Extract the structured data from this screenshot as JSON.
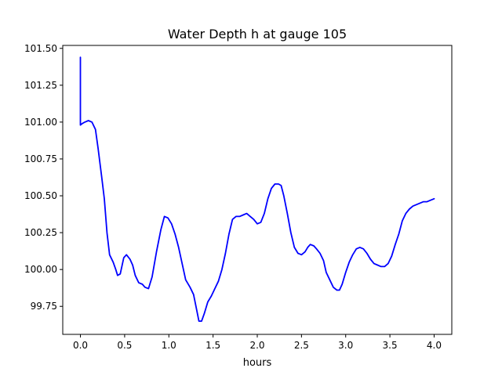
{
  "chart_data": {
    "type": "line",
    "title": "Water Depth h at gauge 105",
    "xlabel": "hours",
    "ylabel": "",
    "xlim": [
      -0.2,
      4.2
    ],
    "ylim": [
      99.56,
      101.52
    ],
    "x_ticks": [
      0.0,
      0.5,
      1.0,
      1.5,
      2.0,
      2.5,
      3.0,
      3.5,
      4.0
    ],
    "x_tick_labels": [
      "0.0",
      "0.5",
      "1.0",
      "1.5",
      "2.0",
      "2.5",
      "3.0",
      "3.5",
      "4.0"
    ],
    "y_ticks": [
      99.75,
      100.0,
      100.25,
      100.5,
      100.75,
      101.0,
      101.25,
      101.5
    ],
    "y_tick_labels": [
      "99.75",
      "100.00",
      "100.25",
      "100.50",
      "100.75",
      "101.00",
      "101.25",
      "101.50"
    ],
    "grid": false,
    "legend": "none",
    "series": [
      {
        "color": "#0000ff",
        "x": [
          0.0,
          0.0,
          0.02,
          0.05,
          0.09,
          0.13,
          0.17,
          0.2,
          0.24,
          0.27,
          0.3,
          0.33,
          0.37,
          0.4,
          0.42,
          0.45,
          0.49,
          0.52,
          0.56,
          0.59,
          0.62,
          0.66,
          0.7,
          0.73,
          0.77,
          0.81,
          0.86,
          0.91,
          0.95,
          0.99,
          1.03,
          1.07,
          1.11,
          1.15,
          1.19,
          1.24,
          1.28,
          1.31,
          1.34,
          1.37,
          1.4,
          1.44,
          1.48,
          1.52,
          1.56,
          1.6,
          1.64,
          1.68,
          1.72,
          1.76,
          1.8,
          1.84,
          1.88,
          1.92,
          1.96,
          2.0,
          2.04,
          2.08,
          2.12,
          2.16,
          2.2,
          2.24,
          2.27,
          2.3,
          2.34,
          2.38,
          2.42,
          2.46,
          2.5,
          2.54,
          2.57,
          2.6,
          2.64,
          2.67,
          2.71,
          2.75,
          2.78,
          2.82,
          2.86,
          2.9,
          2.93,
          2.96,
          3.0,
          3.04,
          3.08,
          3.12,
          3.16,
          3.2,
          3.24,
          3.28,
          3.32,
          3.36,
          3.4,
          3.44,
          3.48,
          3.52,
          3.56,
          3.6,
          3.64,
          3.68,
          3.72,
          3.76,
          3.8,
          3.84,
          3.88,
          3.92,
          3.96,
          4.0
        ],
        "y": [
          101.44,
          100.98,
          100.99,
          101.0,
          101.01,
          101.0,
          100.95,
          100.82,
          100.63,
          100.48,
          100.25,
          100.1,
          100.05,
          100.0,
          99.96,
          99.97,
          100.08,
          100.1,
          100.07,
          100.03,
          99.96,
          99.91,
          99.9,
          99.88,
          99.87,
          99.95,
          100.12,
          100.27,
          100.36,
          100.35,
          100.31,
          100.24,
          100.15,
          100.04,
          99.93,
          99.88,
          99.83,
          99.74,
          99.65,
          99.65,
          99.7,
          99.78,
          99.82,
          99.87,
          99.92,
          100.0,
          100.11,
          100.24,
          100.34,
          100.36,
          100.36,
          100.37,
          100.38,
          100.36,
          100.34,
          100.31,
          100.32,
          100.38,
          100.48,
          100.55,
          100.58,
          100.58,
          100.57,
          100.5,
          100.38,
          100.25,
          100.15,
          100.11,
          100.1,
          100.12,
          100.15,
          100.17,
          100.16,
          100.14,
          100.11,
          100.06,
          99.98,
          99.93,
          99.88,
          99.86,
          99.86,
          99.9,
          99.98,
          100.05,
          100.1,
          100.14,
          100.15,
          100.14,
          100.11,
          100.07,
          100.04,
          100.03,
          100.02,
          100.02,
          100.04,
          100.09,
          100.17,
          100.24,
          100.33,
          100.38,
          100.41,
          100.43,
          100.44,
          100.45,
          100.46,
          100.46,
          100.47,
          100.48
        ]
      }
    ]
  }
}
